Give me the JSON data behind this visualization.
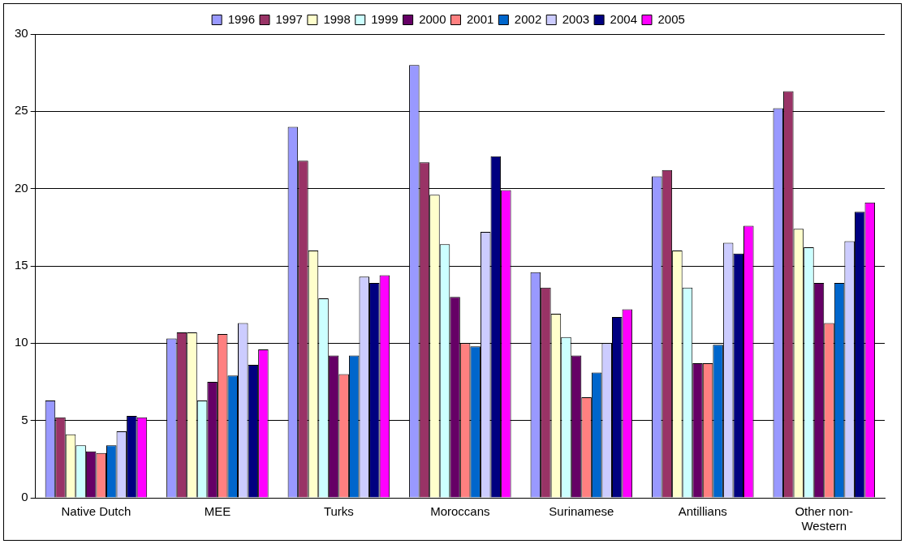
{
  "chart_data": {
    "type": "bar",
    "categories": [
      "Native Dutch",
      "MEE",
      "Turks",
      "Moroccans",
      "Surinamese",
      "Antillians",
      "Other non-Western"
    ],
    "series": [
      {
        "name": "1996",
        "color": "#9999ff",
        "values": [
          6.3,
          10.3,
          24.0,
          28.0,
          14.6,
          20.8,
          25.2
        ]
      },
      {
        "name": "1997",
        "color": "#993366",
        "values": [
          5.2,
          10.7,
          21.8,
          21.7,
          13.6,
          21.2,
          26.3
        ]
      },
      {
        "name": "1998",
        "color": "#ffffcc",
        "values": [
          4.1,
          10.7,
          16.0,
          19.6,
          11.9,
          16.0,
          17.4
        ]
      },
      {
        "name": "1999",
        "color": "#ccffff",
        "values": [
          3.4,
          6.3,
          12.9,
          16.4,
          10.4,
          13.6,
          16.2
        ]
      },
      {
        "name": "2000",
        "color": "#660066",
        "values": [
          3.0,
          7.5,
          9.2,
          13.0,
          9.2,
          8.7,
          13.9
        ]
      },
      {
        "name": "2001",
        "color": "#ff8080",
        "values": [
          2.9,
          10.6,
          8.0,
          10.0,
          6.5,
          8.7,
          11.3
        ]
      },
      {
        "name": "2002",
        "color": "#0066cc",
        "values": [
          3.4,
          7.9,
          9.2,
          9.8,
          8.1,
          9.9,
          13.9
        ]
      },
      {
        "name": "2003",
        "color": "#ccccff",
        "values": [
          4.3,
          11.3,
          14.3,
          17.2,
          10.0,
          16.5,
          16.6
        ]
      },
      {
        "name": "2004",
        "color": "#000080",
        "values": [
          5.3,
          8.6,
          13.9,
          22.1,
          11.7,
          15.8,
          18.5
        ]
      },
      {
        "name": "2005",
        "color": "#ff00ff",
        "values": [
          5.2,
          9.6,
          14.4,
          19.9,
          12.2,
          17.6,
          19.1
        ]
      }
    ],
    "ylim": [
      0,
      30
    ],
    "yticks": [
      0,
      5,
      10,
      15,
      20,
      25,
      30
    ],
    "grid": "y",
    "legend": "top"
  }
}
